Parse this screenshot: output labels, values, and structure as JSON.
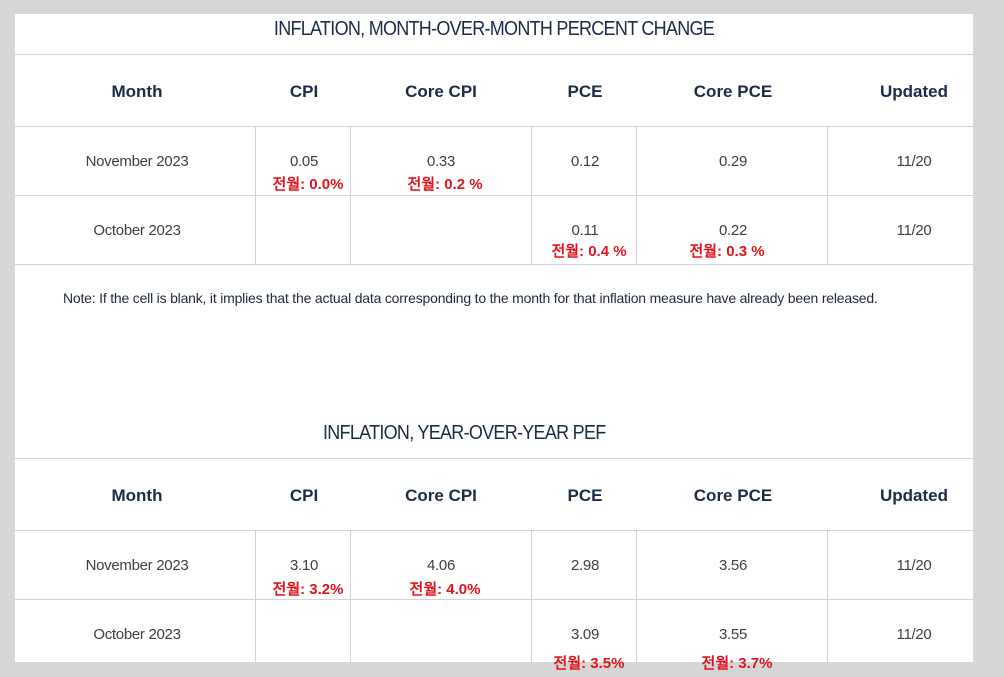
{
  "table1": {
    "title": "INFLATION, MONTH-OVER-MONTH PERCENT CHANGE",
    "headers": [
      "Month",
      "CPI",
      "Core CPI",
      "PCE",
      "Core PCE",
      "Updated"
    ],
    "rows": [
      {
        "month": "November 2023",
        "cpi": "0.05",
        "cpi_note": "전월: 0.0%",
        "core_cpi": "0.33",
        "core_cpi_note": "전월: 0.2 %",
        "pce": "0.12",
        "pce_note": "",
        "core_pce": "0.29",
        "core_pce_note": "",
        "updated": "11/20"
      },
      {
        "month": "October 2023",
        "cpi": "",
        "cpi_note": "",
        "core_cpi": "",
        "core_cpi_note": "",
        "pce": "0.11",
        "pce_note": "전월: 0.4 %",
        "core_pce": "0.22",
        "core_pce_note": "전월: 0.3 %",
        "updated": "11/20"
      }
    ]
  },
  "footnote": "Note: If the cell is blank, it implies that the actual data corresponding to the month for that inflation measure have already been released.",
  "table2": {
    "title": "INFLATION, YEAR-OVER-YEAR PEF",
    "headers": [
      "Month",
      "CPI",
      "Core CPI",
      "PCE",
      "Core PCE",
      "Updated"
    ],
    "rows": [
      {
        "month": "November 2023",
        "cpi": "3.10",
        "cpi_note": "전월: 3.2%",
        "core_cpi": "4.06",
        "core_cpi_note": "전월: 4.0%",
        "pce": "2.98",
        "pce_note": "",
        "core_pce": "3.56",
        "core_pce_note": "",
        "updated": "11/20"
      },
      {
        "month": "October 2023",
        "cpi": "",
        "cpi_note": "",
        "core_cpi": "",
        "core_cpi_note": "",
        "pce": "3.09",
        "pce_note": "전월: 3.5%",
        "core_pce": "3.55",
        "core_pce_note": "전월: 3.7%",
        "updated": "11/20"
      }
    ]
  },
  "colors": {
    "header_text": "#1b2b48",
    "note_red": "#e0141b",
    "border": "#cfd3d8"
  }
}
